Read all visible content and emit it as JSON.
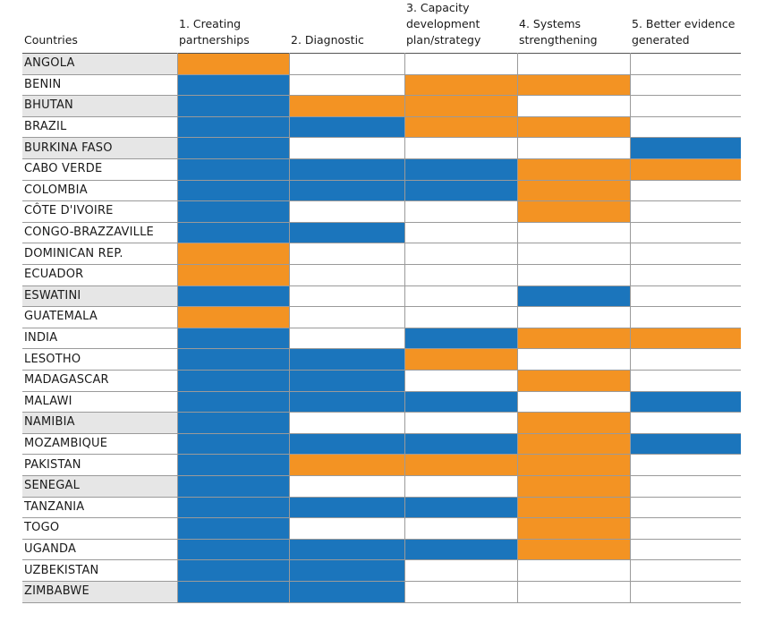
{
  "table": {
    "colors": {
      "blue": "#1b75bc",
      "orange": "#f39323"
    },
    "header": [
      "Countries",
      "1. Creating partnerships",
      "2. Diagnostic",
      "3. Capacity development plan/strategy",
      "4. Systems strengthening",
      "5. Better evidence generated"
    ],
    "rows": [
      {
        "country": "ANGOLA",
        "highlight": true,
        "cells": [
          "orange",
          null,
          null,
          null,
          null
        ]
      },
      {
        "country": "BENIN",
        "highlight": false,
        "cells": [
          "blue",
          null,
          "orange",
          "orange",
          null
        ]
      },
      {
        "country": "BHUTAN",
        "highlight": true,
        "cells": [
          "blue",
          "orange",
          "orange",
          null,
          null
        ]
      },
      {
        "country": "BRAZIL",
        "highlight": false,
        "cells": [
          "blue",
          "blue",
          "orange",
          "orange",
          null
        ]
      },
      {
        "country": "BURKINA FASO",
        "highlight": true,
        "cells": [
          "blue",
          null,
          null,
          null,
          "blue"
        ]
      },
      {
        "country": "CABO VERDE",
        "highlight": false,
        "cells": [
          "blue",
          "blue",
          "blue",
          "orange",
          "orange"
        ]
      },
      {
        "country": "COLOMBIA",
        "highlight": false,
        "cells": [
          "blue",
          "blue",
          "blue",
          "orange",
          null
        ]
      },
      {
        "country": "CÔTE D'IVOIRE",
        "highlight": false,
        "cells": [
          "blue",
          null,
          null,
          "orange",
          null
        ]
      },
      {
        "country": "CONGO-BRAZZAVILLE",
        "highlight": false,
        "cells": [
          "blue",
          "blue",
          null,
          null,
          null
        ]
      },
      {
        "country": "DOMINICAN REP.",
        "highlight": false,
        "cells": [
          "orange",
          null,
          null,
          null,
          null
        ]
      },
      {
        "country": "ECUADOR",
        "highlight": false,
        "cells": [
          "orange",
          null,
          null,
          null,
          null
        ]
      },
      {
        "country": "ESWATINI",
        "highlight": true,
        "cells": [
          "blue",
          null,
          null,
          "blue",
          null
        ]
      },
      {
        "country": "GUATEMALA",
        "highlight": false,
        "cells": [
          "orange",
          null,
          null,
          null,
          null
        ]
      },
      {
        "country": "INDIA",
        "highlight": false,
        "cells": [
          "blue",
          null,
          "blue",
          "orange",
          "orange"
        ]
      },
      {
        "country": "LESOTHO",
        "highlight": false,
        "cells": [
          "blue",
          "blue",
          "orange",
          null,
          null
        ]
      },
      {
        "country": "MADAGASCAR",
        "highlight": false,
        "cells": [
          "blue",
          "blue",
          null,
          "orange",
          null
        ]
      },
      {
        "country": "MALAWI",
        "highlight": false,
        "cells": [
          "blue",
          "blue",
          "blue",
          null,
          "blue"
        ]
      },
      {
        "country": "NAMIBIA",
        "highlight": true,
        "cells": [
          "blue",
          null,
          null,
          "orange",
          null
        ]
      },
      {
        "country": "MOZAMBIQUE",
        "highlight": false,
        "cells": [
          "blue",
          "blue",
          "blue",
          "orange",
          "blue"
        ]
      },
      {
        "country": "PAKISTAN",
        "highlight": false,
        "cells": [
          "blue",
          "orange",
          "orange",
          "orange",
          null
        ]
      },
      {
        "country": "SENEGAL",
        "highlight": true,
        "cells": [
          "blue",
          null,
          null,
          "orange",
          null
        ]
      },
      {
        "country": "TANZANIA",
        "highlight": false,
        "cells": [
          "blue",
          "blue",
          "blue",
          "orange",
          null
        ]
      },
      {
        "country": "TOGO",
        "highlight": false,
        "cells": [
          "blue",
          null,
          null,
          "orange",
          null
        ]
      },
      {
        "country": "UGANDA",
        "highlight": false,
        "cells": [
          "blue",
          "blue",
          "blue",
          "orange",
          null
        ]
      },
      {
        "country": "UZBEKISTAN",
        "highlight": false,
        "cells": [
          "blue",
          "blue",
          null,
          null,
          null
        ]
      },
      {
        "country": "ZIMBABWE",
        "highlight": true,
        "cells": [
          "blue",
          "blue",
          null,
          null,
          null
        ]
      }
    ]
  }
}
